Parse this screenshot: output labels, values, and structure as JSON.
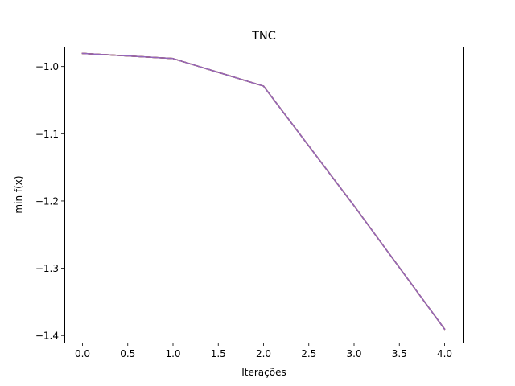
{
  "chart_data": {
    "type": "line",
    "title": "TNC",
    "xlabel": "Iterações",
    "ylabel": "min f(x)",
    "xlim": [
      -0.2,
      4.2
    ],
    "ylim": [
      -1.4105,
      -0.9705
    ],
    "x_ticks": [
      0.0,
      0.5,
      1.0,
      1.5,
      2.0,
      2.5,
      3.0,
      3.5,
      4.0
    ],
    "x_tick_labels": [
      "0.0",
      "0.5",
      "1.0",
      "1.5",
      "2.0",
      "2.5",
      "3.0",
      "3.5",
      "4.0"
    ],
    "y_ticks": [
      -1.0,
      -1.1,
      -1.2,
      -1.3,
      -1.4
    ],
    "y_tick_labels": [
      "−1.0",
      "−1.1",
      "−1.2",
      "−1.3",
      "−1.4"
    ],
    "grid": false,
    "legend": "none",
    "series": [
      {
        "color": "#1f77b4",
        "x": [
          0,
          1,
          2,
          3,
          4
        ],
        "y": [
          -0.9805,
          -0.9882,
          -1.0292,
          -1.2072,
          -1.3905
        ]
      },
      {
        "color": "#ff7f0e",
        "x": [
          0,
          1,
          2,
          3,
          4
        ],
        "y": [
          -0.9805,
          -0.9882,
          -1.0292,
          -1.2072,
          -1.3905
        ]
      },
      {
        "color": "#2ca02c",
        "x": [
          0,
          1,
          2,
          3,
          4
        ],
        "y": [
          -0.9805,
          -0.9882,
          -1.0292,
          -1.2072,
          -1.3905
        ]
      },
      {
        "color": "#d62728",
        "x": [
          0,
          1,
          2,
          3,
          4
        ],
        "y": [
          -0.9805,
          -0.9882,
          -1.0292,
          -1.2072,
          -1.3905
        ]
      },
      {
        "color": "#9467bd",
        "x": [
          0,
          1,
          2,
          3,
          4
        ],
        "y": [
          -0.9805,
          -0.9882,
          -1.0292,
          -1.2072,
          -1.3905
        ]
      }
    ]
  }
}
